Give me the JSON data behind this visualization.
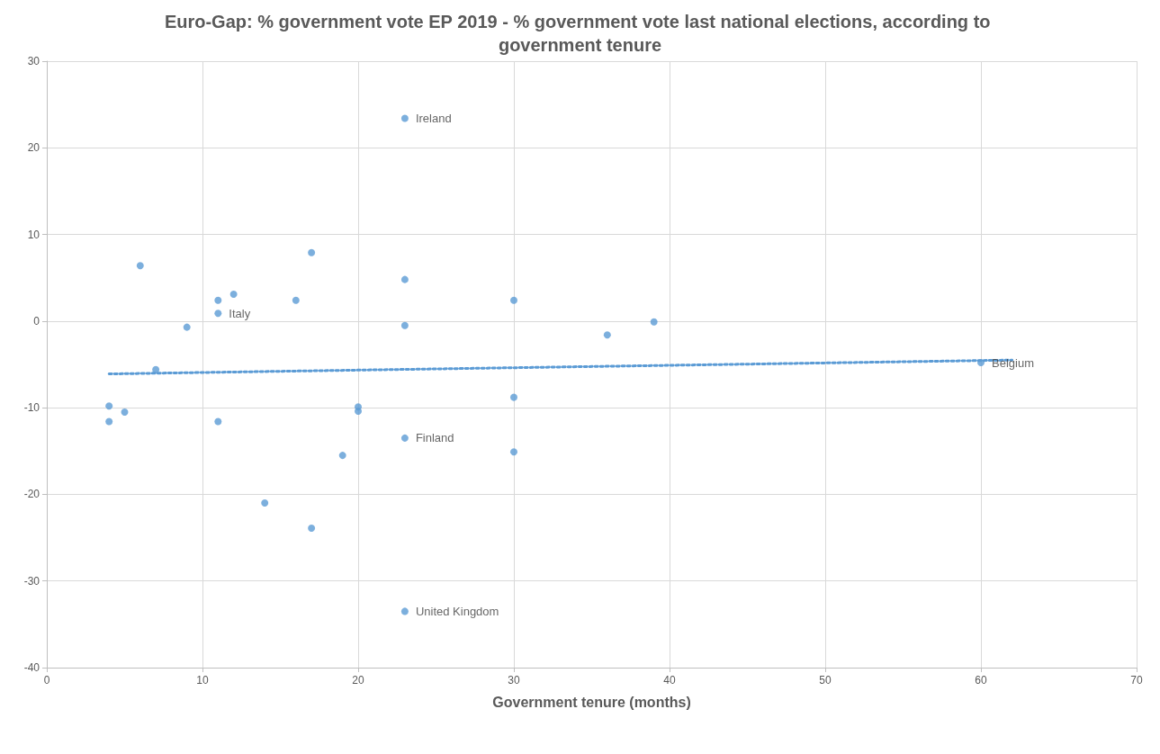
{
  "chart_data": {
    "type": "scatter",
    "title": "Euro-Gap: % government vote EP 2019 - % government vote last national elections, according to government tenure",
    "xlabel": "Government tenure (months)",
    "xlim": [
      0,
      70
    ],
    "xticks": [
      0,
      10,
      20,
      30,
      40,
      50,
      60,
      70
    ],
    "ylim": [
      -40,
      30
    ],
    "yticks": [
      -40,
      -30,
      -20,
      -10,
      0,
      10,
      20,
      30
    ],
    "grid": true,
    "marker": "circle",
    "series": [
      {
        "color": "#5b9bd5",
        "x": [
          23,
          6,
          17,
          23,
          12,
          11,
          16,
          30,
          11,
          9,
          23,
          39,
          36,
          7,
          60,
          4,
          5,
          4,
          11,
          20,
          20,
          30,
          23,
          30,
          19,
          14,
          17,
          23
        ],
        "values": [
          23.4,
          6.4,
          7.9,
          4.8,
          3.1,
          2.4,
          2.4,
          2.4,
          0.9,
          -0.7,
          -0.5,
          -0.1,
          -1.6,
          -5.6,
          -4.8,
          -9.8,
          -10.5,
          -11.6,
          -11.6,
          -9.9,
          -10.4,
          -8.8,
          -13.5,
          -15.1,
          -15.5,
          -21,
          -23.9,
          -33.5
        ],
        "value_labels": [
          "Ireland",
          null,
          null,
          null,
          null,
          null,
          null,
          null,
          "Italy",
          null,
          null,
          null,
          null,
          null,
          "Belgium",
          null,
          null,
          null,
          null,
          null,
          null,
          null,
          "Finland",
          null,
          null,
          null,
          null,
          "United Kingdom"
        ]
      },
      {
        "type": "line",
        "color": "#5b9bd5",
        "line_style": "dotted",
        "marker": "none",
        "x": [
          4,
          62
        ],
        "values": [
          -6.1,
          -4.5
        ]
      }
    ]
  }
}
